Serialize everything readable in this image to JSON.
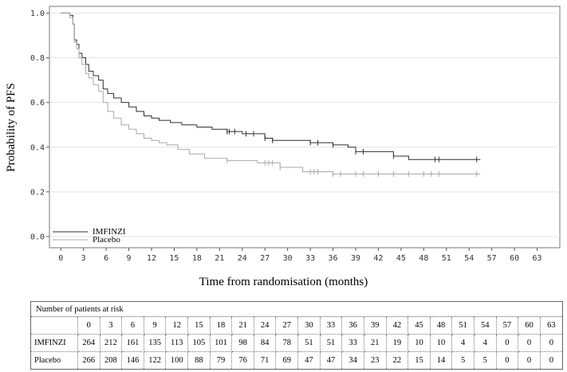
{
  "chart_data": {
    "type": "line",
    "title": "",
    "xlabel": "Time from randomisation (months)",
    "ylabel": "Probability of PFS",
    "xlim": [
      -1.5,
      66
    ],
    "ylim": [
      -0.05,
      1.03
    ],
    "xticks": [
      0,
      3,
      6,
      9,
      12,
      15,
      18,
      21,
      24,
      27,
      30,
      33,
      36,
      39,
      42,
      45,
      48,
      51,
      54,
      57,
      60,
      63
    ],
    "yticks": [
      "0.0",
      "0.2",
      "0.4",
      "0.6",
      "0.8",
      "1.0"
    ],
    "legend_position": "bottom-left",
    "series": [
      {
        "name": "IMFINZI",
        "color": "#2f2f2f",
        "x": [
          0,
          1.2,
          1.6,
          1.8,
          2.1,
          2.4,
          2.8,
          3.3,
          3.7,
          4.3,
          5.0,
          5.6,
          6.2,
          7.0,
          8.0,
          9.0,
          10.0,
          11.0,
          12.0,
          13.0,
          14.5,
          16.0,
          18.0,
          20.0,
          22.0,
          24.0,
          27.0,
          28.0,
          30.0,
          33.0,
          36.0,
          38.0,
          39.0,
          44.0,
          46.0,
          55.5
        ],
        "y": [
          1.0,
          0.99,
          0.95,
          0.88,
          0.86,
          0.82,
          0.8,
          0.77,
          0.74,
          0.72,
          0.7,
          0.66,
          0.64,
          0.62,
          0.6,
          0.58,
          0.56,
          0.54,
          0.53,
          0.52,
          0.51,
          0.5,
          0.49,
          0.48,
          0.47,
          0.46,
          0.44,
          0.43,
          0.43,
          0.42,
          0.41,
          0.4,
          0.38,
          0.36,
          0.345,
          0.345
        ],
        "censored_x": [
          22.0,
          22.3,
          23.0,
          24.5,
          25.5,
          27.0,
          28.0,
          33.0,
          34.0,
          36.0,
          39.0,
          40.0,
          44.0,
          49.5,
          50.0,
          55.0
        ]
      },
      {
        "name": "Placebo",
        "color": "#a8a8a8",
        "x": [
          0,
          1.2,
          1.6,
          1.8,
          2.1,
          2.4,
          2.8,
          3.3,
          3.7,
          4.3,
          5.0,
          5.6,
          6.2,
          7.0,
          8.0,
          9.0,
          10.0,
          11.0,
          12.0,
          13.0,
          14.0,
          15.5,
          17.0,
          19.0,
          22.0,
          26.0,
          29.0,
          32.0,
          36.0,
          55.5
        ],
        "y": [
          1.0,
          0.98,
          0.95,
          0.87,
          0.84,
          0.8,
          0.77,
          0.73,
          0.71,
          0.68,
          0.65,
          0.6,
          0.56,
          0.53,
          0.5,
          0.48,
          0.46,
          0.44,
          0.43,
          0.42,
          0.41,
          0.39,
          0.37,
          0.35,
          0.34,
          0.33,
          0.31,
          0.29,
          0.28,
          0.28
        ],
        "censored_x": [
          22.0,
          27.0,
          27.5,
          28.0,
          29.0,
          33.0,
          33.5,
          34.0,
          36.0,
          37.0,
          39.0,
          40.0,
          42.0,
          44.0,
          46.0,
          48.0,
          49.0,
          50.0,
          55.0
        ]
      }
    ]
  },
  "risk_table": {
    "title": "Number of patients at risk",
    "times": [
      "0",
      "3",
      "6",
      "9",
      "12",
      "15",
      "18",
      "21",
      "24",
      "27",
      "30",
      "33",
      "36",
      "39",
      "42",
      "45",
      "48",
      "51",
      "54",
      "57",
      "60",
      "63"
    ],
    "rows": [
      {
        "name": "IMFINZI",
        "values": [
          "264",
          "212",
          "161",
          "135",
          "113",
          "105",
          "101",
          "98",
          "84",
          "78",
          "51",
          "51",
          "33",
          "21",
          "19",
          "10",
          "10",
          "4",
          "4",
          "0",
          "0",
          "0"
        ]
      },
      {
        "name": "Placebo",
        "values": [
          "266",
          "208",
          "146",
          "122",
          "100",
          "88",
          "79",
          "76",
          "71",
          "69",
          "47",
          "47",
          "34",
          "23",
          "22",
          "15",
          "14",
          "5",
          "5",
          "0",
          "0",
          "0"
        ]
      }
    ]
  }
}
